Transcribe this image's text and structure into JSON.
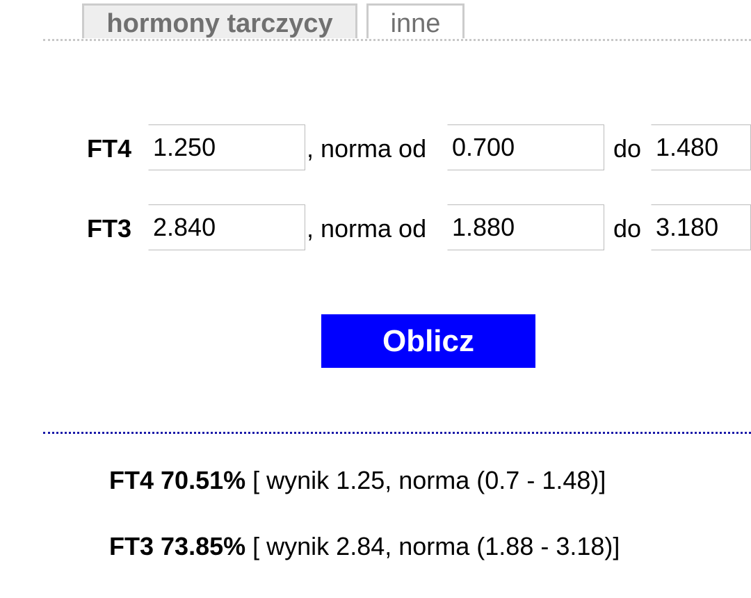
{
  "tabs": [
    {
      "label": "hormony tarczycy",
      "active": true
    },
    {
      "label": "inne",
      "active": false
    }
  ],
  "form": {
    "rows": [
      {
        "label": "FT4",
        "value": "1.250",
        "norma_label": ", norma od",
        "min": "0.700",
        "do_label": "do",
        "max": "1.480"
      },
      {
        "label": "FT3",
        "value": "2.840",
        "norma_label": ", norma od",
        "min": "1.880",
        "do_label": "do",
        "max": "3.180"
      }
    ],
    "submit_label": "Oblicz"
  },
  "results": [
    {
      "name": "FT4",
      "percent": "70.51%",
      "detail": "[ wynik 1.25, norma (0.7 - 1.48)]"
    },
    {
      "name": "FT3",
      "percent": "73.85%",
      "detail": "[ wynik 2.84, norma (1.88 - 3.18)]"
    }
  ],
  "colors": {
    "button": "#0000ff",
    "divider": "#1a1aa8"
  }
}
